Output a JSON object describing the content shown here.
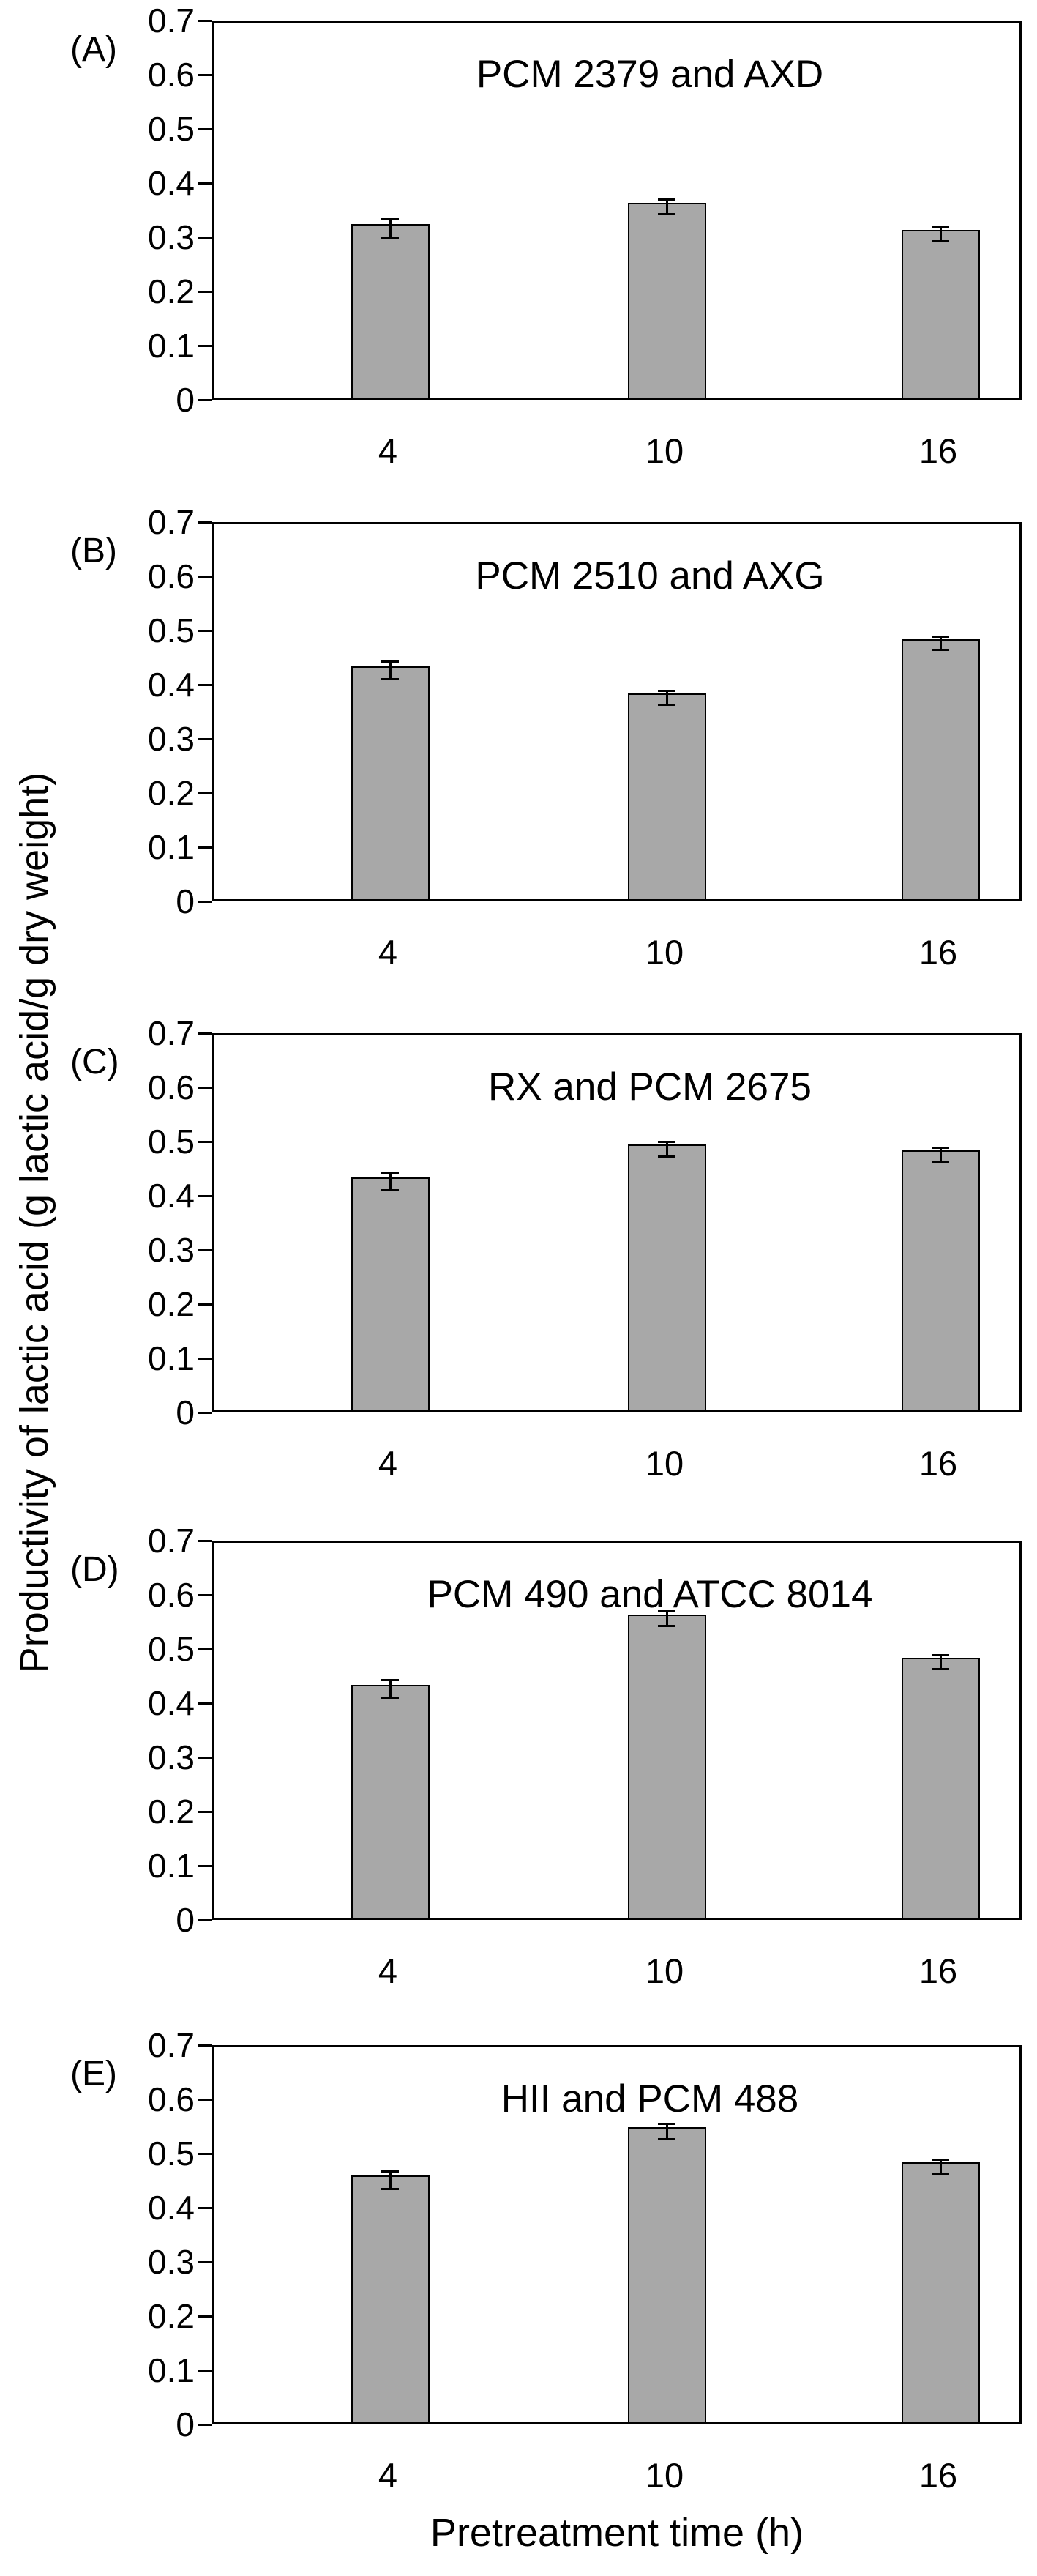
{
  "figure": {
    "y_axis_label": "Productivity of lactic acid (g lactic acid/g dry weight)",
    "x_axis_label": "Pretreatment time (h)"
  },
  "colors": {
    "bar_fill": "#a8a8a8",
    "bar_border": "#000000",
    "axis": "#000000",
    "background": "#ffffff"
  },
  "chart_data": [
    {
      "type": "bar",
      "panel_label": "(A)",
      "title": "PCM 2379 and AXD",
      "categories": [
        "4",
        "10",
        "16"
      ],
      "values": [
        0.32,
        0.36,
        0.31
      ],
      "errors": [
        0.017,
        0.013,
        0.014
      ],
      "xlabel": "Pretreatment time (h)",
      "ylabel": "Productivity of lactic acid (g lactic acid/g dry weight)",
      "ylim": [
        0,
        0.7
      ],
      "yticks": [
        "0.7",
        "0.6",
        "0.5",
        "0.4",
        "0.3",
        "0.2",
        "0.1",
        "0"
      ],
      "grid": false,
      "legend": "none"
    },
    {
      "type": "bar",
      "panel_label": "(B)",
      "title": "PCM 2510 and AXG",
      "categories": [
        "4",
        "10",
        "16"
      ],
      "values": [
        0.43,
        0.38,
        0.48
      ],
      "errors": [
        0.016,
        0.013,
        0.012
      ],
      "xlabel": "Pretreatment time (h)",
      "ylabel": "Productivity of lactic acid (g lactic acid/g dry weight)",
      "ylim": [
        0,
        0.7
      ],
      "yticks": [
        "0.7",
        "0.6",
        "0.5",
        "0.4",
        "0.3",
        "0.2",
        "0.1",
        "0"
      ],
      "grid": false,
      "legend": "none"
    },
    {
      "type": "bar",
      "panel_label": "(C)",
      "title": "RX and PCM 2675",
      "categories": [
        "4",
        "10",
        "16"
      ],
      "values": [
        0.43,
        0.49,
        0.48
      ],
      "errors": [
        0.016,
        0.013,
        0.013
      ],
      "xlabel": "Pretreatment time (h)",
      "ylabel": "Productivity of lactic acid (g lactic acid/g dry weight)",
      "ylim": [
        0,
        0.7
      ],
      "yticks": [
        "0.7",
        "0.6",
        "0.5",
        "0.4",
        "0.3",
        "0.2",
        "0.1",
        "0"
      ],
      "grid": false,
      "legend": "none"
    },
    {
      "type": "bar",
      "panel_label": "(D)",
      "title": "PCM 490 and ATCC 8014",
      "categories": [
        "4",
        "10",
        "16"
      ],
      "values": [
        0.43,
        0.56,
        0.48
      ],
      "errors": [
        0.016,
        0.014,
        0.013
      ],
      "xlabel": "Pretreatment time (h)",
      "ylabel": "Productivity of lactic acid (g lactic acid/g dry weight)",
      "ylim": [
        0,
        0.7
      ],
      "yticks": [
        "0.7",
        "0.6",
        "0.5",
        "0.4",
        "0.3",
        "0.2",
        "0.1",
        "0"
      ],
      "grid": false,
      "legend": "none"
    },
    {
      "type": "bar",
      "panel_label": "(E)",
      "title": "HII and PCM 488",
      "categories": [
        "4",
        "10",
        "16"
      ],
      "values": [
        0.455,
        0.545,
        0.48
      ],
      "errors": [
        0.016,
        0.014,
        0.013
      ],
      "xlabel": "Pretreatment time (h)",
      "ylabel": "Productivity of lactic acid (g lactic acid/g dry weight)",
      "ylim": [
        0,
        0.7
      ],
      "yticks": [
        "0.7",
        "0.6",
        "0.5",
        "0.4",
        "0.3",
        "0.2",
        "0.1",
        "0"
      ],
      "grid": false,
      "legend": "none"
    }
  ]
}
